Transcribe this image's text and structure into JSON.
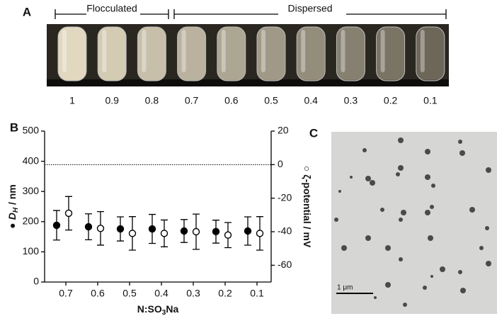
{
  "panel_a": {
    "label": "A",
    "groups": [
      {
        "label": "Flocculated"
      },
      {
        "label": "Dispersed"
      }
    ],
    "samples": [
      "1",
      "0.9",
      "0.8",
      "0.7",
      "0.6",
      "0.5",
      "0.4",
      "0.3",
      "0.2",
      "0.1"
    ]
  },
  "chart_data": {
    "type": "scatter",
    "panel_label": "B",
    "categories": [
      "0.7",
      "0.6",
      "0.5",
      "0.4",
      "0.3",
      "0.2",
      "0.1"
    ],
    "xlabel": {
      "text": "N:SO",
      "subscript": "3",
      "rest": "Na"
    },
    "ylabel": {
      "marker": "●",
      "symbol": "D",
      "subscript": "H",
      "unit": " / nm"
    },
    "y2label": {
      "marker": "○",
      "text": "ζ-potential / mV"
    },
    "ylim": [
      0,
      500
    ],
    "yticks": [
      0,
      100,
      200,
      300,
      400,
      500
    ],
    "y2lim": [
      -70,
      20
    ],
    "y2ticks": [
      -60,
      -40,
      -20,
      0,
      20
    ],
    "reference_line": {
      "axis": "y2",
      "value": 0,
      "style": "dotted"
    },
    "series": [
      {
        "marker": "filled",
        "color": "#000000",
        "values": [
          188,
          183,
          176,
          176,
          169,
          167,
          169
        ],
        "errors": [
          49,
          43,
          40,
          48,
          38,
          38,
          47
        ]
      },
      {
        "marker": "open",
        "axis": "y2",
        "color": "#000000",
        "values": [
          -29,
          -38,
          -41,
          -41,
          -40,
          -42,
          -41
        ],
        "errors": [
          10,
          10,
          10,
          8,
          10.5,
          7.5,
          10
        ]
      }
    ]
  },
  "panel_c": {
    "label": "C",
    "scale_bar": "1 μm"
  }
}
